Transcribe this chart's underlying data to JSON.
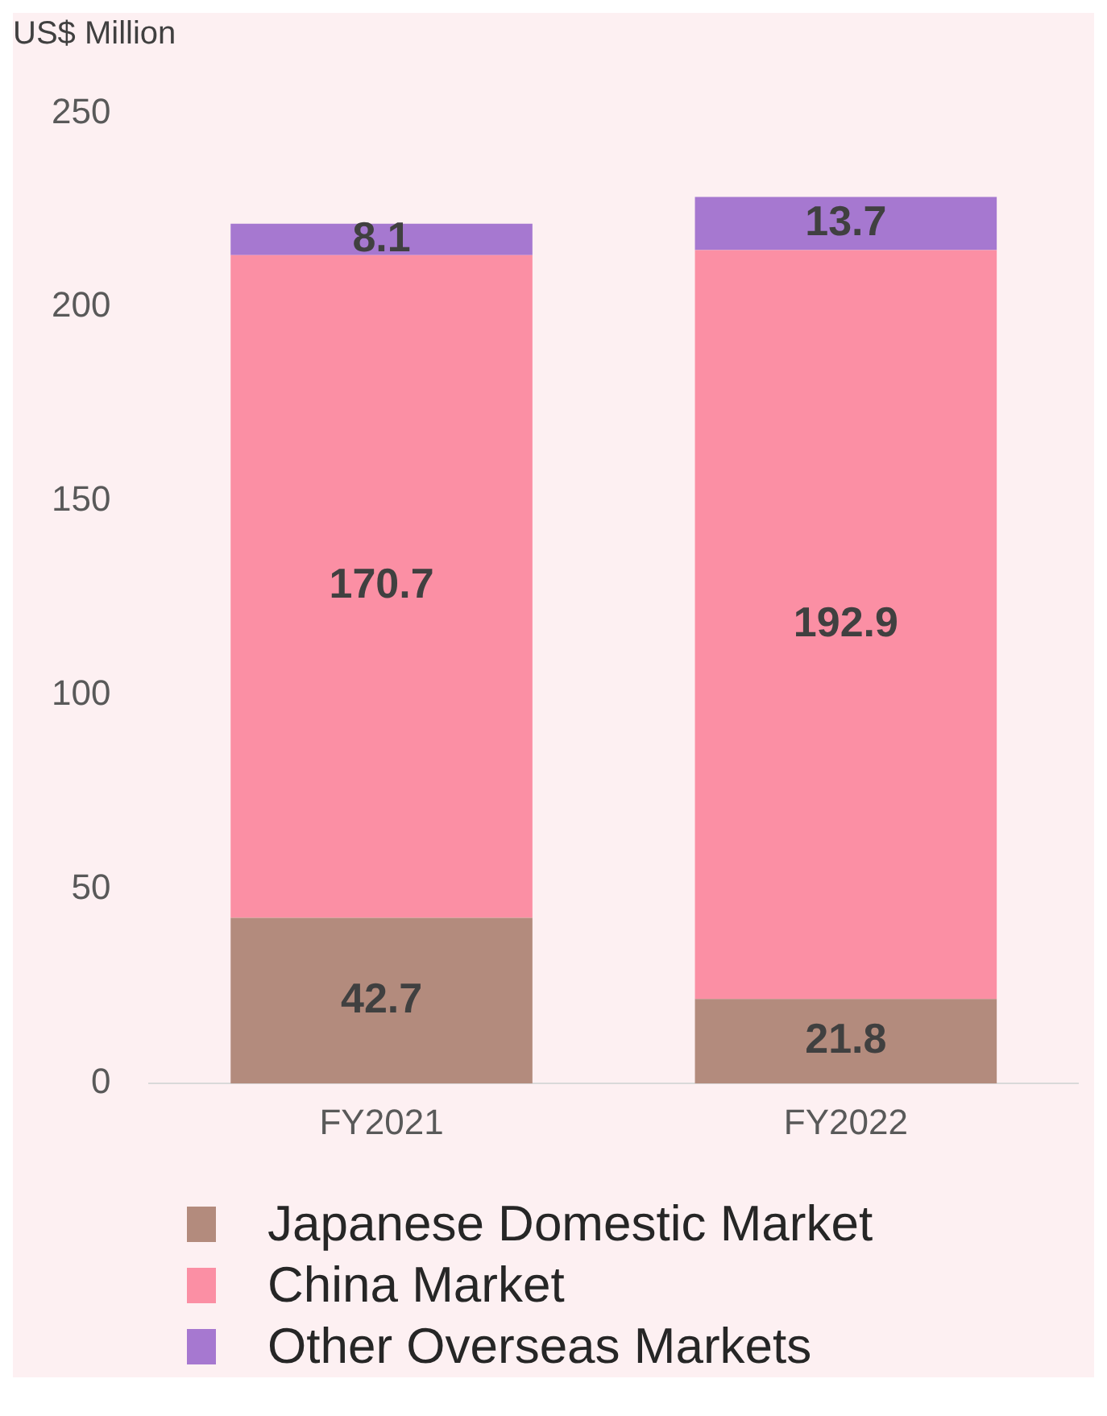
{
  "chart_data": {
    "type": "bar",
    "ylabel": "US$ Million",
    "categories": [
      "FY2021",
      "FY2022"
    ],
    "stacked": true,
    "data_labels": true,
    "legend": "bottom",
    "grid": false,
    "ylim": [
      0,
      250
    ],
    "yticks": [
      0,
      50,
      100,
      150,
      200,
      250
    ],
    "series": [
      {
        "name": "Japanese Domestic Market",
        "color": "#b38b7d",
        "values": [
          42.7,
          21.8
        ]
      },
      {
        "name": "China Market",
        "color": "#fb8fa4",
        "values": [
          170.7,
          192.9
        ]
      },
      {
        "name": "Other Overseas Markets",
        "color": "#a678d0",
        "values": [
          8.1,
          13.7
        ]
      }
    ]
  }
}
